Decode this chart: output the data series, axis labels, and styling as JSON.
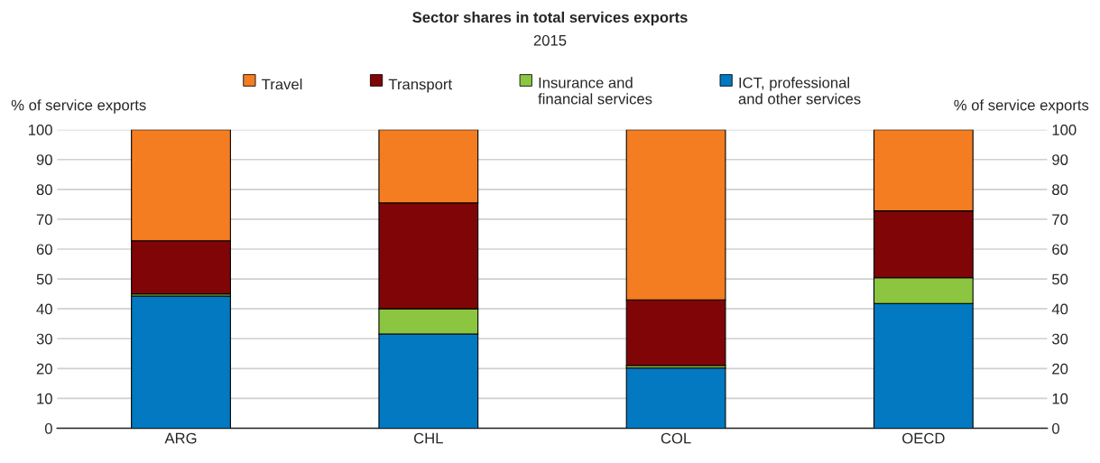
{
  "chart_data": {
    "type": "bar",
    "title": "Sector shares in total services exports",
    "subtitle": "2015",
    "ylabel": "% of service exports",
    "y2label": "% of service exports",
    "categories": [
      "ARG",
      "CHL",
      "COL",
      "OECD"
    ],
    "stacked": true,
    "series": [
      {
        "name": "ICT, professional\nand other services",
        "color": "#0279c0",
        "values": [
          44.3,
          31.6,
          20.2,
          41.8
        ]
      },
      {
        "name": "Insurance and\nfinancial services",
        "color": "#8cc641",
        "values": [
          0.7,
          8.4,
          0.8,
          8.6
        ]
      },
      {
        "name": "Transport",
        "color": "#800506",
        "values": [
          17.8,
          35.5,
          22.0,
          22.4
        ]
      },
      {
        "name": "Travel",
        "color": "#f47d22",
        "values": [
          37.2,
          24.5,
          57.0,
          27.2
        ]
      }
    ],
    "ylim": [
      0,
      100
    ],
    "yticks": [
      0,
      10,
      20,
      30,
      40,
      50,
      60,
      70,
      80,
      90,
      100
    ],
    "y2lim": [
      0,
      100
    ],
    "y2ticks": [
      0,
      10,
      20,
      30,
      40,
      50,
      60,
      70,
      80,
      90,
      100
    ],
    "grid": "y",
    "legend": "top"
  }
}
